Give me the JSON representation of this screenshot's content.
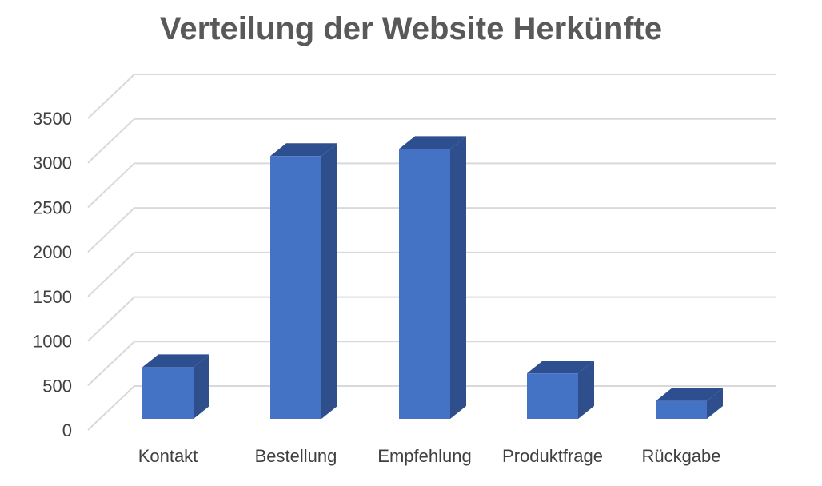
{
  "chart_data": {
    "type": "bar",
    "title": "Verteilung der Website Herkünfte",
    "categories": [
      "Kontakt",
      "Bestellung",
      "Empfehlung",
      "Produktfrage",
      "Rückgabe"
    ],
    "values": [
      580,
      2950,
      3030,
      510,
      200
    ],
    "ylim": [
      0,
      3500
    ],
    "yticks": [
      0,
      500,
      1000,
      1500,
      2000,
      2500,
      3000,
      3500
    ],
    "grid": true,
    "style": "3d-column",
    "colors": {
      "front": "#4472C4",
      "side": "#2F4E8C",
      "top": "#2E4F8F",
      "grid": "#D9D9D9"
    }
  }
}
